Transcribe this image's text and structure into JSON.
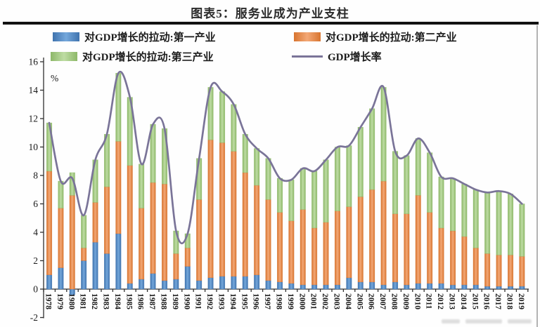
{
  "header": {
    "title": "图表5：服务业成为产业支柱"
  },
  "axes": {
    "y_unit": "%",
    "y_tick_labels": [
      "16",
      "14",
      "12",
      "10",
      "8",
      "6",
      "4",
      "2",
      "0",
      "-2"
    ]
  },
  "chart_data": {
    "type": "bar",
    "stacked": true,
    "title": "图表5：服务业成为产业支柱",
    "xlabel": "",
    "ylabel": "%",
    "ylim": [
      -2,
      16
    ],
    "ytick_step": 2,
    "grid": false,
    "legend_position": "top",
    "categories": [
      1978,
      1979,
      1980,
      1981,
      1982,
      1983,
      1984,
      1985,
      1986,
      1987,
      1988,
      1989,
      1990,
      1991,
      1992,
      1993,
      1994,
      1995,
      1996,
      1997,
      1998,
      1999,
      2000,
      2001,
      2002,
      2003,
      2004,
      2005,
      2006,
      2007,
      2008,
      2009,
      2010,
      2011,
      2012,
      2013,
      2014,
      2015,
      2016,
      2017,
      2018,
      2019
    ],
    "series": [
      {
        "name": "对GDP增长的拉动:第一产业",
        "type": "bar",
        "color": "#4e86c0",
        "color_edge": "#3f73ae",
        "color_light": "#74a7db",
        "values": [
          1.0,
          1.5,
          -0.4,
          2.0,
          3.3,
          2.5,
          3.9,
          0.4,
          0.7,
          1.1,
          0.6,
          0.7,
          1.6,
          0.6,
          0.8,
          0.9,
          0.9,
          0.9,
          1.0,
          0.6,
          0.5,
          0.4,
          0.3,
          0.3,
          0.3,
          0.3,
          0.8,
          0.5,
          0.5,
          0.3,
          0.5,
          0.3,
          0.4,
          0.4,
          0.4,
          0.3,
          0.3,
          0.3,
          0.2,
          0.2,
          0.2,
          0.2
        ]
      },
      {
        "name": "对GDP增长的拉动:第二产业",
        "type": "bar",
        "color": "#e8874e",
        "color_edge": "#d8742f",
        "color_light": "#f3a876",
        "values": [
          7.3,
          4.2,
          6.6,
          0.9,
          2.8,
          4.7,
          6.5,
          8.3,
          5.0,
          6.4,
          6.8,
          1.8,
          1.3,
          5.7,
          9.7,
          9.4,
          8.8,
          7.3,
          6.3,
          5.7,
          4.9,
          4.4,
          5.3,
          4.0,
          4.4,
          5.2,
          5.0,
          6.0,
          6.5,
          7.3,
          4.8,
          5.0,
          6.2,
          5.0,
          3.9,
          3.8,
          3.4,
          2.6,
          2.3,
          2.2,
          2.2,
          2.1
        ]
      },
      {
        "name": "对GDP增长的拉动:第三产业",
        "type": "bar",
        "color": "#a4cb83",
        "color_edge": "#8db868",
        "color_light": "#bedca4",
        "values": [
          3.4,
          1.9,
          1.6,
          2.3,
          3.0,
          3.7,
          4.8,
          4.8,
          3.1,
          4.1,
          3.9,
          1.6,
          1.0,
          2.9,
          3.7,
          3.6,
          3.3,
          2.7,
          2.6,
          2.9,
          2.4,
          2.9,
          2.9,
          4.0,
          4.4,
          4.5,
          4.3,
          4.9,
          5.7,
          6.6,
          4.4,
          4.1,
          4.0,
          4.2,
          3.6,
          3.7,
          3.7,
          4.1,
          4.3,
          4.5,
          4.3,
          3.7
        ]
      },
      {
        "name": "GDP增长率",
        "type": "line",
        "color": "#7a7498",
        "values": [
          11.7,
          7.6,
          7.8,
          5.2,
          9.1,
          10.9,
          15.2,
          13.5,
          8.8,
          11.6,
          11.3,
          4.1,
          3.9,
          9.2,
          14.2,
          13.9,
          13.0,
          10.9,
          9.9,
          9.2,
          7.8,
          7.7,
          8.5,
          8.3,
          9.1,
          10.0,
          10.1,
          11.4,
          12.7,
          14.2,
          9.7,
          9.4,
          10.6,
          9.6,
          7.9,
          7.8,
          7.4,
          7.0,
          6.8,
          6.9,
          6.7,
          6.0
        ]
      }
    ]
  }
}
